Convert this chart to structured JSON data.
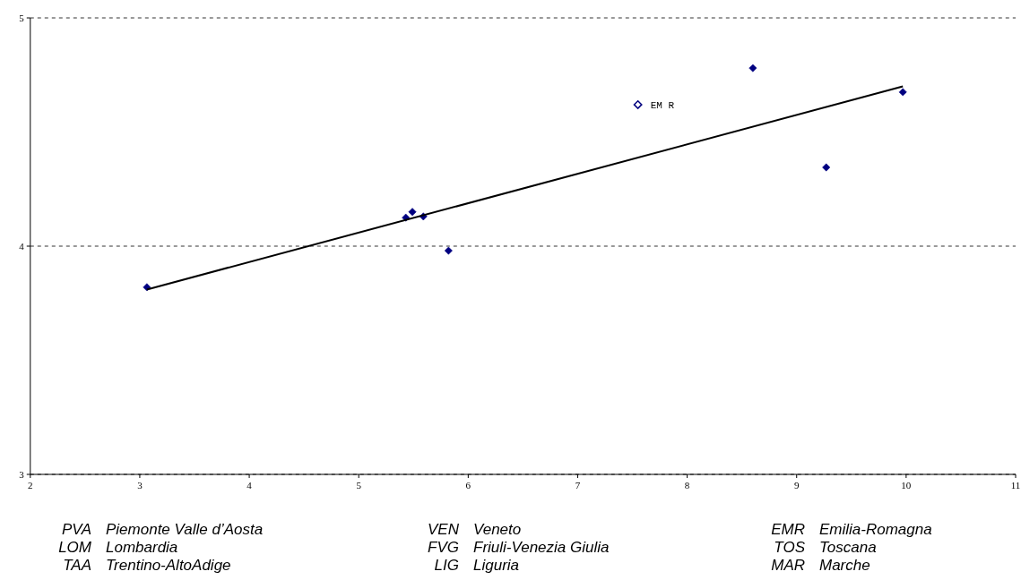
{
  "chart_data": {
    "type": "scatter",
    "marker": "diamond",
    "grid": "y",
    "xlim": [
      2,
      11
    ],
    "xticks": [
      2,
      3,
      4,
      5,
      6,
      7,
      8,
      9,
      10,
      11
    ],
    "ylim": [
      3,
      5
    ],
    "yticks": [
      3,
      4,
      5
    ],
    "series": [
      {
        "color": "#000080",
        "x": [
          3.065,
          5.43,
          5.49,
          5.59,
          5.82,
          8.6,
          9.27,
          9.97
        ],
        "values": [
          3.82,
          4.125,
          4.15,
          4.13,
          3.98,
          4.78,
          4.345,
          4.675
        ]
      },
      {
        "type": "scatter",
        "marker": "diamond",
        "color": "#000080",
        "x": [
          7.55
        ],
        "values": [
          4.62
        ]
      },
      {
        "type": "line",
        "marker": "none",
        "color": "#000000",
        "x": [
          3.065,
          9.97
        ],
        "values": [
          3.81,
          4.7
        ]
      }
    ],
    "annotations": [
      {
        "text": "EM R",
        "x": 7.55,
        "y": 4.62
      },
      "PVA",
      "Piemonte Valle d’Aosta",
      "LOM",
      "Lombardia",
      "TAA",
      "Trentino-AltoAdige",
      "VEN",
      "Veneto",
      "FVG",
      "Friuli-Venezia Giulia",
      "LIG",
      "Liguria",
      "EMR",
      "Emilia-Romagna",
      "TOS",
      "Toscana",
      "MAR",
      "Marche"
    ]
  }
}
